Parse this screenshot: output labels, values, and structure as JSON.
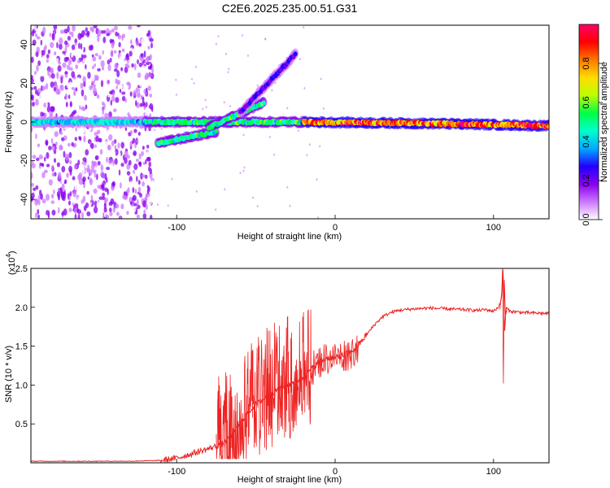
{
  "title": "C2E6.2025.235.00.51.G31",
  "chart_data": [
    {
      "type": "heatmap",
      "xlabel": "Height of straight line (km)",
      "ylabel": "Frequency (Hz)",
      "xlim": [
        -192,
        135
      ],
      "ylim": [
        -50,
        50
      ],
      "xticks": [
        -100,
        0,
        100
      ],
      "yticks": [
        -40,
        -20,
        0,
        20,
        40
      ],
      "colorbar": {
        "label": "Normalized spectral amplitude",
        "ticks": [
          "0.0",
          "0.2",
          "0.4",
          "0.6",
          "0.8"
        ],
        "tick_values": [
          0.0,
          0.2,
          0.4,
          0.6,
          0.8
        ],
        "range": [
          0,
          1
        ],
        "colors": [
          "#ffffff",
          "#cc77ff",
          "#8800ee",
          "#2200ff",
          "#00aaff",
          "#00ffcc",
          "#00ff44",
          "#bbff00",
          "#ffdd00",
          "#ff7700",
          "#ff0000",
          "#ff0066"
        ]
      },
      "components": [
        {
          "name": "main-line",
          "x": [
            -192,
            -120
          ],
          "freq": [
            0,
            0
          ],
          "amplitude": 0.45
        },
        {
          "name": "main-line",
          "x": [
            -120,
            -20
          ],
          "freq": [
            0,
            0
          ],
          "amplitude": 0.55
        },
        {
          "name": "main-line",
          "x": [
            -20,
            80
          ],
          "freq": [
            0,
            -1
          ],
          "amplitude": 0.9
        },
        {
          "name": "main-line",
          "x": [
            80,
            135
          ],
          "freq": [
            -1,
            -2
          ],
          "amplitude": 0.95
        },
        {
          "name": "lower-branch",
          "x": [
            -112,
            -75
          ],
          "freq": [
            -11,
            -5
          ],
          "amplitude": 0.55
        },
        {
          "name": "mid-branch",
          "x": [
            -80,
            -45
          ],
          "freq": [
            -3,
            10
          ],
          "amplitude": 0.55
        },
        {
          "name": "upper-branch",
          "x": [
            -60,
            -25
          ],
          "freq": [
            5,
            35
          ],
          "amplitude": 0.25
        }
      ]
    },
    {
      "type": "line",
      "xlabel": "Height of straight line (km)",
      "ylabel": "SNR (10 * v/v)",
      "exponent_label": "(x10",
      "exponent_power": "4",
      "exponent_close": ")",
      "xlim": [
        -192,
        135
      ],
      "ylim": [
        0,
        2.5
      ],
      "xticks": [
        -100,
        0,
        100
      ],
      "yticks": [
        0.5,
        1.0,
        1.5,
        2.0,
        2.5
      ],
      "color": "#ee2222",
      "series": [
        {
          "name": "SNR",
          "x": [
            -192,
            -160,
            -130,
            -110,
            -100,
            -90,
            -80,
            -70,
            -65,
            -60,
            -55,
            -50,
            -45,
            -40,
            -35,
            -30,
            -25,
            -20,
            -15,
            -10,
            -5,
            0,
            5,
            10,
            15,
            20,
            25,
            30,
            35,
            40,
            50,
            60,
            70,
            80,
            90,
            95,
            100,
            103,
            105,
            106,
            107,
            108,
            110,
            120,
            135
          ],
          "y": [
            0.02,
            0.02,
            0.02,
            0.03,
            0.06,
            0.12,
            0.18,
            0.25,
            0.35,
            0.5,
            0.65,
            0.75,
            0.82,
            0.9,
            0.95,
            1.0,
            1.05,
            1.1,
            1.2,
            1.3,
            1.35,
            1.35,
            1.38,
            1.42,
            1.52,
            1.65,
            1.78,
            1.88,
            1.93,
            1.96,
            1.98,
            1.99,
            1.98,
            1.97,
            1.96,
            1.97,
            1.95,
            2.0,
            2.1,
            2.5,
            1.7,
            2.0,
            1.95,
            1.93,
            1.92
          ]
        }
      ],
      "annotations": [
        {
          "label": "spikes",
          "x": [
            -75,
            -15
          ],
          "y_max": 1.97
        },
        {
          "label": "spike",
          "x": 106,
          "y_max": 2.5,
          "y_min": 1.02
        }
      ]
    }
  ]
}
